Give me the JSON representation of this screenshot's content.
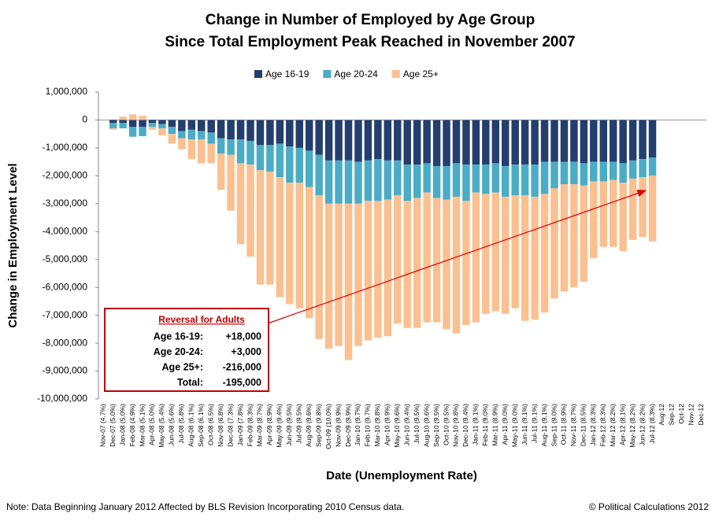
{
  "chart_data": {
    "type": "stacked_bar",
    "title": [
      "Change in Number of Employed by Age Group",
      "Since Total Employment Peak Reached in November 2007"
    ],
    "x_label": "Date (Unemployment Rate)",
    "y_label": "Change in Employment Level",
    "categories": [
      "Nov-07 (4.7%)",
      "Dec-07 (5.0%)",
      "Jan-08 (5.0%)",
      "Feb-08 (4.9%)",
      "Mar-08 (5.1%)",
      "Apr-08 (5.0%)",
      "May-08 (5.4%)",
      "Jun-08 (5.6%)",
      "Jul-08 (5.8%)",
      "Aug-08 (6.1%)",
      "Sep-08 (6.1%)",
      "Oct-08 (6.5%)",
      "Nov-08 (6.8%)",
      "Dec-08 (7.3%)",
      "Jan-09 (7.8%)",
      "Feb-09 (8.3%)",
      "Mar-09 (8.7%)",
      "Apr-09 (8.9%)",
      "May-09 (9.4%)",
      "Jun-09 (9.5%)",
      "Jul-09 (9.5%)",
      "Aug-09 (9.6%)",
      "Sep-09 (9.8%)",
      "Oct-09 (10.0%)",
      "Nov-09 (9.9%)",
      "Dec-09 (9.9%)",
      "Jan-10 (9.7%)",
      "Feb-10 (9.7%)",
      "Mar-10 (9.8%)",
      "Apr-10 (9.9%)",
      "May-10 (9.6%)",
      "Jun-10 (9.4%)",
      "Jul-10 (9.5%)",
      "Aug-10 (9.6%)",
      "Sep-10 (9.5%)",
      "Oct-10 (9.5%)",
      "Nov-10 (9.8%)",
      "Dec-10 (9.4%)",
      "Jan-11 (9.1%)",
      "Feb-11 (9.0%)",
      "Mar-11 (8.9%)",
      "Apr-11 (9.0%)",
      "May-11 (9.0%)",
      "Jun-11 (9.1%)",
      "Jul-11 (9.1%)",
      "Aug-11 (9.1%)",
      "Sep-11 (9.0%)",
      "Oct-11 (8.9%)",
      "Nov-11 (8.7%)",
      "Dec-11 (8.5%)",
      "Jan-12 (8.3%)",
      "Feb-12 (8.3%)",
      "Mar-12 (8.2%)",
      "Apr-12 (8.1%)",
      "May-12 (8.2%)",
      "Jun-12 (8.2%)",
      "Jul-12 (8.3%)",
      "Aug-12",
      "Sep-12",
      "Oct-12",
      "Nov-12",
      "Dec-12"
    ],
    "series": [
      {
        "name": "Age 16-19",
        "color": "#243f6e",
        "values": [
          0,
          -100000,
          -100000,
          -250000,
          -250000,
          -100000,
          -150000,
          -250000,
          -400000,
          -350000,
          -400000,
          -450000,
          -650000,
          -700000,
          -700000,
          -750000,
          -900000,
          -900000,
          -850000,
          -950000,
          -1000000,
          -1100000,
          -1250000,
          -1450000,
          -1450000,
          -1450000,
          -1500000,
          -1450000,
          -1400000,
          -1450000,
          -1450000,
          -1600000,
          -1600000,
          -1550000,
          -1650000,
          -1650000,
          -1550000,
          -1600000,
          -1600000,
          -1600000,
          -1550000,
          -1650000,
          -1600000,
          -1600000,
          -1600000,
          -1500000,
          -1500000,
          -1500000,
          -1500000,
          -1550000,
          -1500000,
          -1500000,
          -1500000,
          -1550000,
          -1450000,
          -1400000,
          -1350000,
          null,
          null,
          null,
          null,
          null
        ]
      },
      {
        "name": "Age 20-24",
        "color": "#4bacc6",
        "values": [
          0,
          -200000,
          -200000,
          -350000,
          -330000,
          -150000,
          -150000,
          -250000,
          -250000,
          -350000,
          -300000,
          -400000,
          -550000,
          -550000,
          -850000,
          -850000,
          -900000,
          -950000,
          -1200000,
          -1300000,
          -1250000,
          -1300000,
          -1450000,
          -1550000,
          -1550000,
          -1550000,
          -1500000,
          -1450000,
          -1500000,
          -1400000,
          -1250000,
          -1300000,
          -1200000,
          -1050000,
          -1150000,
          -1200000,
          -1200000,
          -1300000,
          -1000000,
          -1050000,
          -1050000,
          -1100000,
          -1100000,
          -1100000,
          -1150000,
          -1150000,
          -950000,
          -800000,
          -800000,
          -800000,
          -700000,
          -700000,
          -650000,
          -700000,
          -650000,
          -650000,
          -650000,
          null,
          null,
          null,
          null,
          null
        ]
      },
      {
        "name": "Age 25+",
        "color": "#fac090",
        "values": [
          0,
          -50000,
          120000,
          200000,
          150000,
          -100000,
          -250000,
          -350000,
          -400000,
          -700000,
          -850000,
          -700000,
          -1300000,
          -2000000,
          -2900000,
          -3300000,
          -4100000,
          -4050000,
          -4300000,
          -4350000,
          -4500000,
          -4700000,
          -5150000,
          -5200000,
          -5100000,
          -5600000,
          -5100000,
          -5000000,
          -4900000,
          -4900000,
          -4600000,
          -4550000,
          -4650000,
          -4650000,
          -4450000,
          -4650000,
          -4900000,
          -4450000,
          -4650000,
          -4300000,
          -4250000,
          -4200000,
          -4050000,
          -4500000,
          -4400000,
          -4250000,
          -3950000,
          -3850000,
          -3700000,
          -3450000,
          -2750000,
          -2350000,
          -2400000,
          -2450000,
          -2200000,
          -2150000,
          -2350000,
          null,
          null,
          null,
          null,
          null
        ]
      }
    ],
    "ylim": [
      -10000000,
      1000000
    ],
    "yticks": [
      {
        "value": -10000000,
        "label": "-10,000,000"
      },
      {
        "value": -9000000,
        "label": "-9,000,000"
      },
      {
        "value": -8000000,
        "label": "-8,000,000"
      },
      {
        "value": -7000000,
        "label": "-7,000,000"
      },
      {
        "value": -6000000,
        "label": "-6,000,000"
      },
      {
        "value": -5000000,
        "label": "-5,000,000"
      },
      {
        "value": -4000000,
        "label": "-4,000,000"
      },
      {
        "value": -3000000,
        "label": "-3,000,000"
      },
      {
        "value": -2000000,
        "label": "-2,000,000"
      },
      {
        "value": -1000000,
        "label": "-1,000,000"
      },
      0,
      {
        "value": 1000000,
        "label": "1,000,000"
      }
    ],
    "legend": "top",
    "annotation": {
      "title": "Reversal for Adults",
      "rows": [
        [
          "Age 16-19:",
          "+18,000"
        ],
        [
          "Age 20-24:",
          "+3,000"
        ],
        [
          "Age 25+:",
          "-216,000"
        ],
        [
          "Total:",
          "-195,000"
        ]
      ]
    },
    "note": "Note: Data Beginning January 2012 Affected by BLS Revision Incorporating 2010 Census data.",
    "credit": "© Political Calculations 2012"
  }
}
